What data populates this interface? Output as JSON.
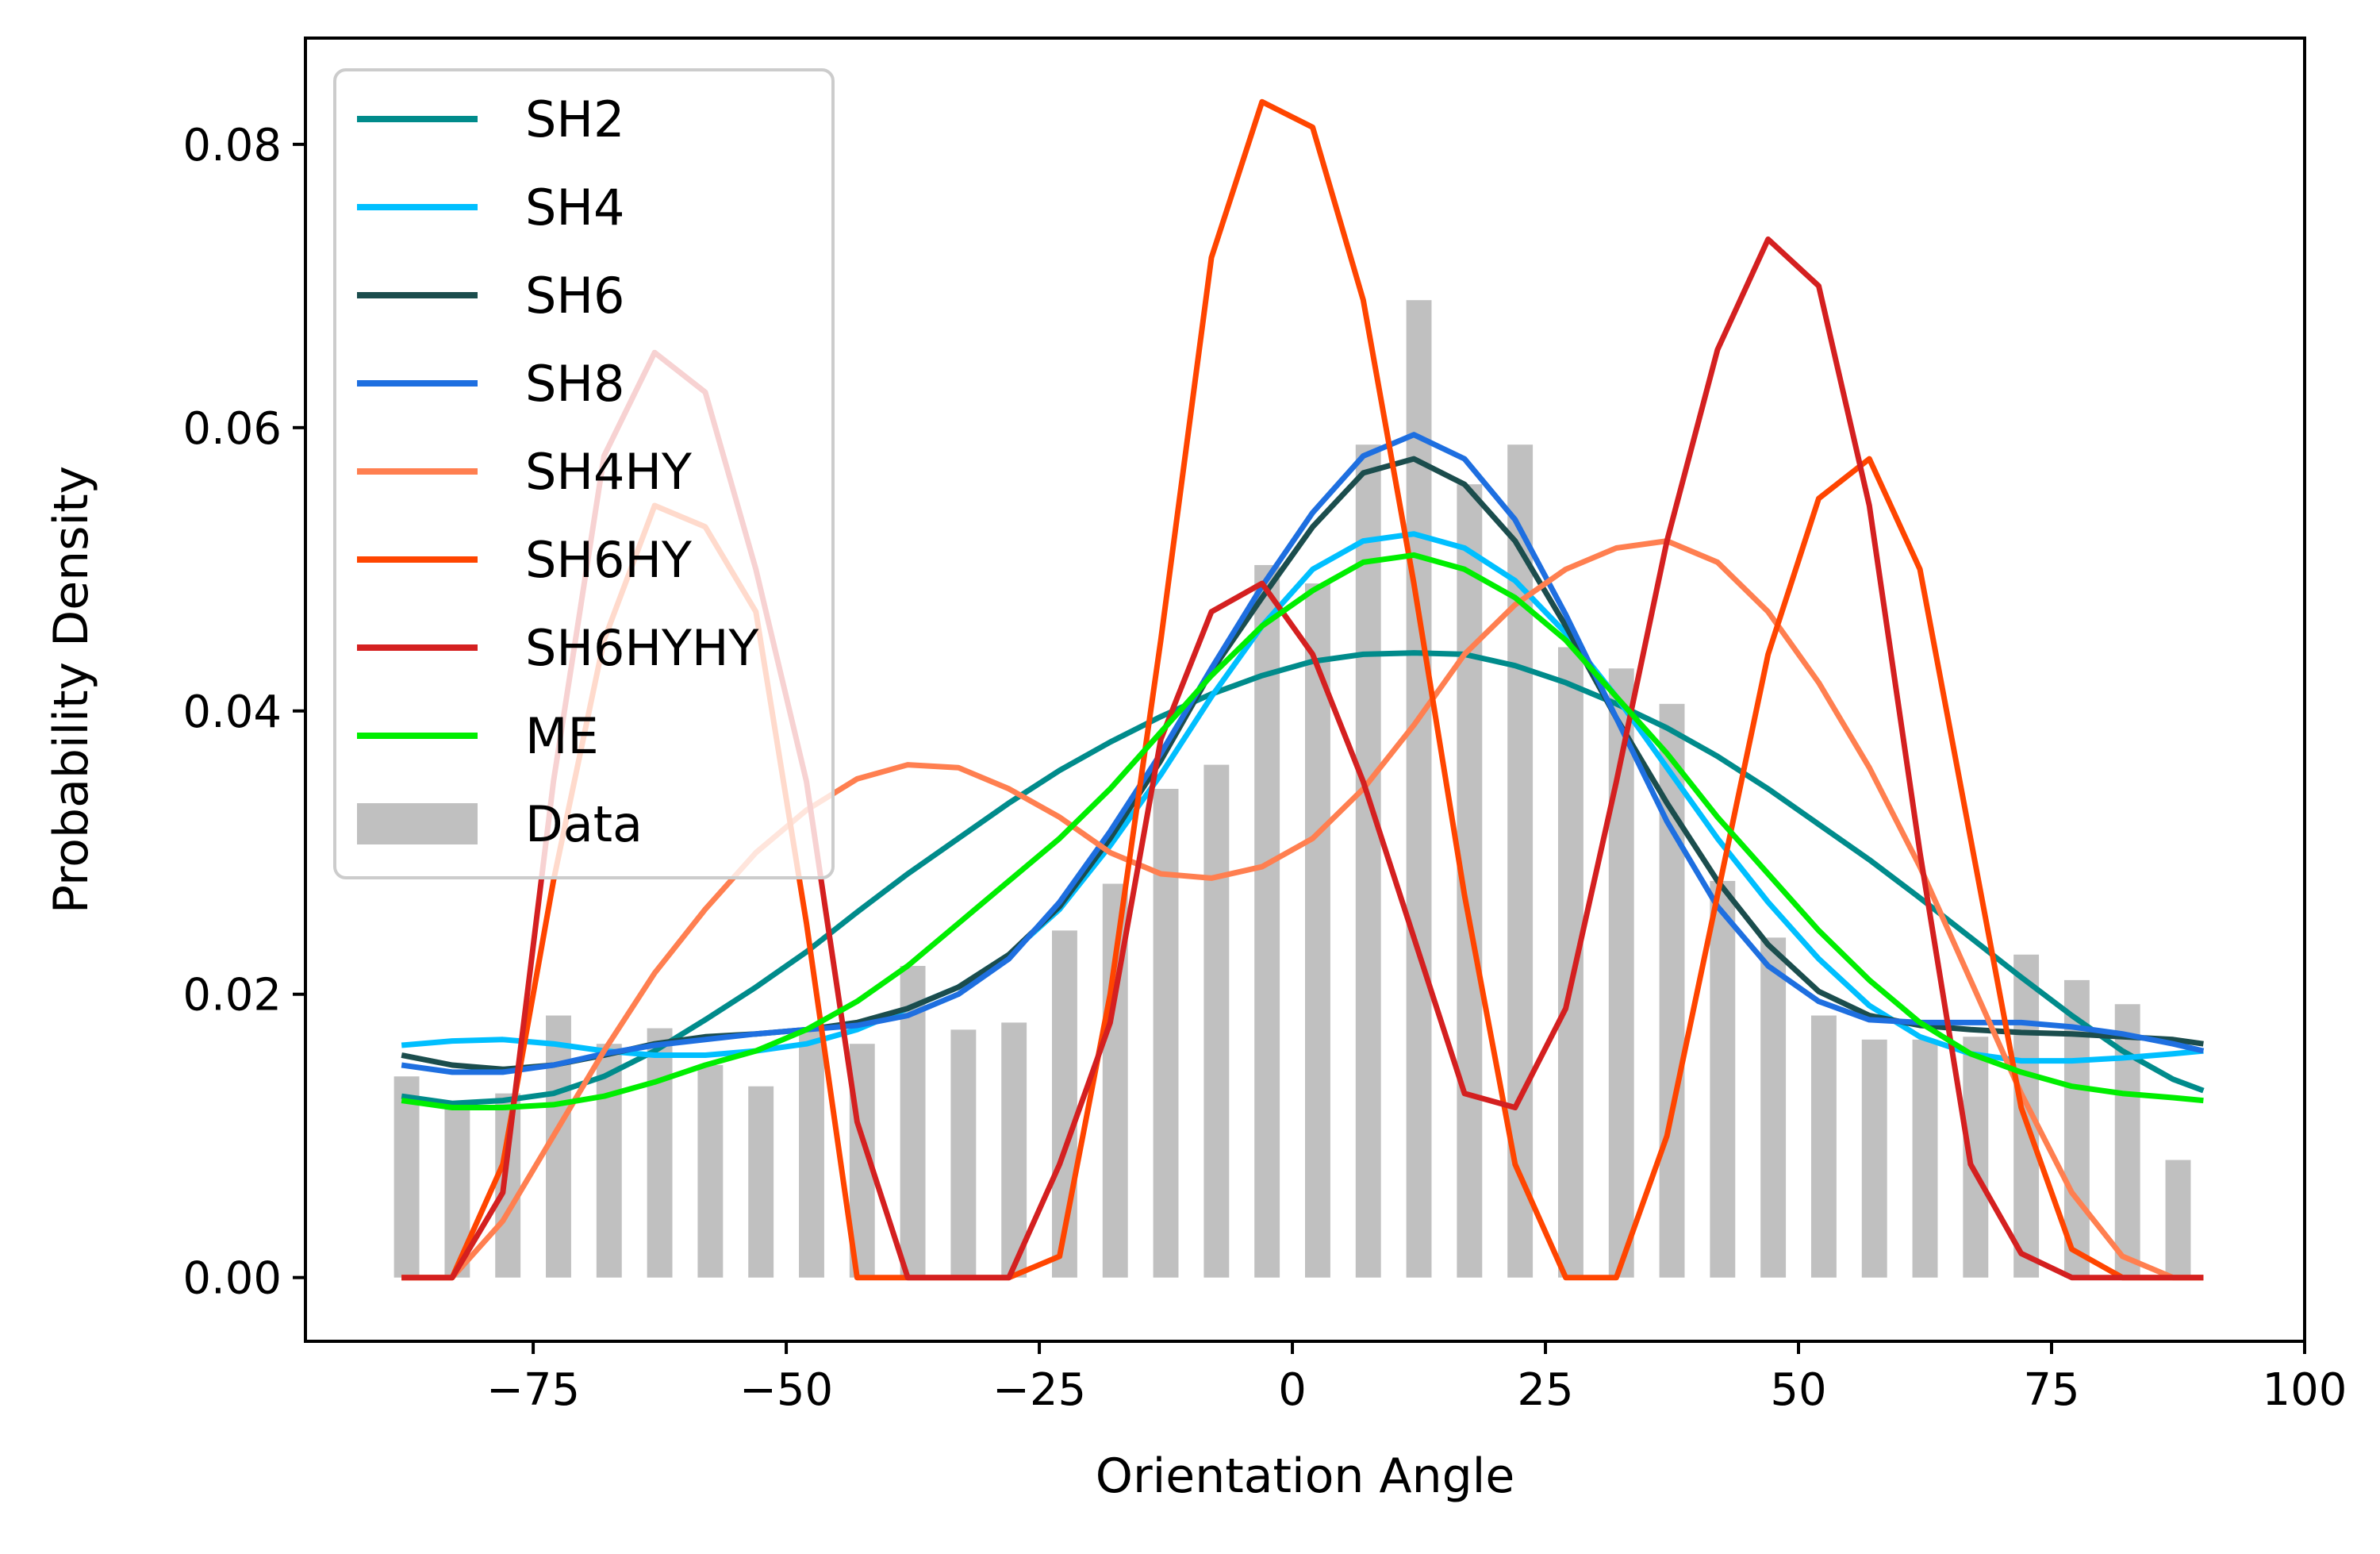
{
  "chart_data": {
    "type": "line",
    "title": "",
    "xlabel": "Orientation Angle",
    "ylabel": "Probability Density",
    "xlim": [
      -97.5,
      100
    ],
    "ylim": [
      -0.0045,
      0.0875
    ],
    "xticks": [
      -75,
      -50,
      -25,
      0,
      25,
      50,
      75,
      100
    ],
    "xtick_labels": [
      "−75",
      "−50",
      "−25",
      "0",
      "25",
      "50",
      "75",
      "100"
    ],
    "yticks": [
      0.0,
      0.02,
      0.04,
      0.06,
      0.08
    ],
    "ytick_labels": [
      "0.00",
      "0.02",
      "0.04",
      "0.06",
      "0.08"
    ],
    "grid": false,
    "legend_position": "top-left",
    "histogram": {
      "name": "Data",
      "color": "#c0c0c0",
      "bar_width": 2.5,
      "x": [
        -87.5,
        -82.5,
        -77.5,
        -72.5,
        -67.5,
        -62.5,
        -57.5,
        -52.5,
        -47.5,
        -42.5,
        -37.5,
        -32.5,
        -27.5,
        -22.5,
        -17.5,
        -12.5,
        -7.5,
        -2.5,
        2.5,
        7.5,
        12.5,
        17.5,
        22.5,
        27.5,
        32.5,
        37.5,
        42.5,
        47.5,
        52.5,
        57.5,
        62.5,
        67.5,
        72.5,
        77.5,
        82.5,
        87.5
      ],
      "values": [
        0.0142,
        0.0122,
        0.013,
        0.0185,
        0.0165,
        0.0176,
        0.015,
        0.0135,
        0.0175,
        0.0165,
        0.022,
        0.0175,
        0.018,
        0.0245,
        0.0278,
        0.0345,
        0.0362,
        0.0503,
        0.049,
        0.0588,
        0.069,
        0.056,
        0.0588,
        0.0445,
        0.043,
        0.0405,
        0.028,
        0.024,
        0.0185,
        0.0168,
        0.0168,
        0.017,
        0.0228,
        0.021,
        0.0193,
        0.0083
      ]
    },
    "x": [
      -88,
      -83,
      -78,
      -73,
      -68,
      -63,
      -58,
      -53,
      -48,
      -43,
      -38,
      -33,
      -28,
      -23,
      -18,
      -13,
      -8,
      -3,
      2,
      7,
      12,
      17,
      22,
      27,
      32,
      37,
      42,
      47,
      52,
      57,
      62,
      67,
      72,
      77,
      82,
      87,
      90
    ],
    "series": [
      {
        "name": "SH2",
        "color": "#008b8b",
        "values": [
          0.0128,
          0.0123,
          0.0125,
          0.013,
          0.0142,
          0.016,
          0.0182,
          0.0205,
          0.023,
          0.0258,
          0.0285,
          0.031,
          0.0335,
          0.0358,
          0.0378,
          0.0396,
          0.0412,
          0.0425,
          0.0435,
          0.044,
          0.0441,
          0.044,
          0.0432,
          0.042,
          0.0405,
          0.0388,
          0.0368,
          0.0345,
          0.032,
          0.0295,
          0.0268,
          0.024,
          0.0212,
          0.0185,
          0.016,
          0.014,
          0.0132
        ]
      },
      {
        "name": "SH4",
        "color": "#00bfff",
        "values": [
          0.0164,
          0.0167,
          0.0168,
          0.0165,
          0.016,
          0.0157,
          0.0157,
          0.016,
          0.0165,
          0.0175,
          0.019,
          0.0205,
          0.0228,
          0.026,
          0.0305,
          0.0355,
          0.041,
          0.046,
          0.05,
          0.052,
          0.0525,
          0.0515,
          0.0492,
          0.0455,
          0.041,
          0.036,
          0.031,
          0.0265,
          0.0225,
          0.0192,
          0.017,
          0.0158,
          0.0153,
          0.0153,
          0.0155,
          0.0158,
          0.016
        ]
      },
      {
        "name": "SH6",
        "color": "#1b4d4d",
        "values": [
          0.0157,
          0.015,
          0.0147,
          0.015,
          0.0157,
          0.0165,
          0.017,
          0.0172,
          0.0175,
          0.018,
          0.019,
          0.0205,
          0.0228,
          0.0262,
          0.031,
          0.0365,
          0.0428,
          0.048,
          0.053,
          0.0568,
          0.0578,
          0.056,
          0.052,
          0.046,
          0.0395,
          0.0335,
          0.028,
          0.0235,
          0.0202,
          0.0185,
          0.0178,
          0.0175,
          0.0173,
          0.0172,
          0.017,
          0.0168,
          0.0165
        ]
      },
      {
        "name": "SH8",
        "color": "#1e6fe0",
        "values": [
          0.015,
          0.0145,
          0.0145,
          0.015,
          0.0158,
          0.0164,
          0.0168,
          0.0172,
          0.0175,
          0.0178,
          0.0185,
          0.02,
          0.0225,
          0.0265,
          0.0315,
          0.037,
          0.043,
          0.0488,
          0.054,
          0.058,
          0.0595,
          0.0578,
          0.0535,
          0.0468,
          0.0395,
          0.0322,
          0.0262,
          0.022,
          0.0195,
          0.0182,
          0.018,
          0.018,
          0.018,
          0.0177,
          0.0172,
          0.0165,
          0.016
        ]
      },
      {
        "name": "SH4HY",
        "color": "#ff7f50",
        "values": [
          0.0,
          0.0,
          0.004,
          0.01,
          0.016,
          0.0215,
          0.026,
          0.03,
          0.033,
          0.0352,
          0.0362,
          0.036,
          0.0345,
          0.0325,
          0.03,
          0.0285,
          0.0282,
          0.029,
          0.031,
          0.0345,
          0.039,
          0.044,
          0.0475,
          0.05,
          0.0515,
          0.052,
          0.0505,
          0.047,
          0.042,
          0.036,
          0.029,
          0.021,
          0.013,
          0.006,
          0.0015,
          0.0,
          0.0
        ]
      },
      {
        "name": "SH6HY",
        "color": "#ff4500",
        "values": [
          0.0,
          0.0,
          0.008,
          0.028,
          0.045,
          0.0545,
          0.053,
          0.047,
          0.025,
          0.0,
          0.0,
          0.0,
          0.0,
          0.0015,
          0.02,
          0.045,
          0.072,
          0.083,
          0.0812,
          0.069,
          0.049,
          0.027,
          0.008,
          0.0,
          0.0,
          0.01,
          0.027,
          0.044,
          0.055,
          0.0578,
          0.05,
          0.031,
          0.012,
          0.002,
          0.0,
          0.0,
          0.0
        ]
      },
      {
        "name": "SH6HYHY",
        "color": "#d42020",
        "values": [
          0.0,
          0.0,
          0.006,
          0.035,
          0.058,
          0.0653,
          0.0625,
          0.05,
          0.035,
          0.011,
          0.0,
          0.0,
          0.0,
          0.008,
          0.018,
          0.038,
          0.047,
          0.049,
          0.044,
          0.035,
          0.024,
          0.013,
          0.012,
          0.019,
          0.035,
          0.052,
          0.0655,
          0.0733,
          0.07,
          0.0545,
          0.03,
          0.008,
          0.0017,
          0.0,
          0.0,
          0.0,
          0.0
        ]
      },
      {
        "name": "ME",
        "color": "#00ee00",
        "values": [
          0.0125,
          0.012,
          0.012,
          0.0122,
          0.0128,
          0.0138,
          0.015,
          0.016,
          0.0175,
          0.0195,
          0.022,
          0.025,
          0.028,
          0.031,
          0.0345,
          0.0385,
          0.0425,
          0.046,
          0.0485,
          0.0505,
          0.051,
          0.05,
          0.048,
          0.045,
          0.041,
          0.037,
          0.0325,
          0.0285,
          0.0245,
          0.021,
          0.018,
          0.0158,
          0.0145,
          0.0135,
          0.013,
          0.0127,
          0.0125
        ]
      }
    ]
  }
}
